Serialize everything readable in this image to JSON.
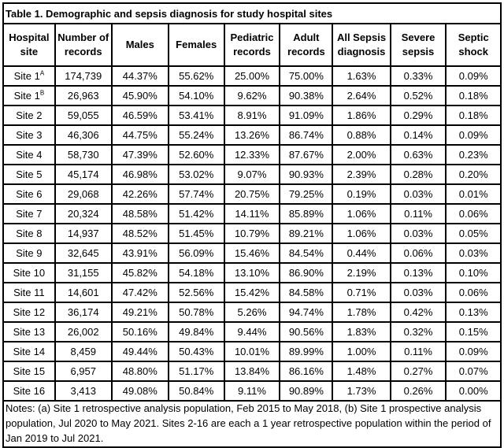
{
  "table": {
    "title": "Table 1. Demographic and sepsis diagnosis for study hospital sites",
    "columns": [
      "Hospital site",
      "Number of records",
      "Males",
      "Females",
      "Pediatric records",
      "Adult records",
      "All Sepsis diagnosis",
      "Severe sepsis",
      "Septic shock"
    ],
    "rows": [
      {
        "site": "Site 1",
        "sup": "A",
        "values": [
          "174,739",
          "44.37%",
          "55.62%",
          "25.00%",
          "75.00%",
          "1.63%",
          "0.33%",
          "0.09%"
        ]
      },
      {
        "site": "Site 1",
        "sup": "B",
        "values": [
          "26,963",
          "45.90%",
          "54.10%",
          "9.62%",
          "90.38%",
          "2.64%",
          "0.52%",
          "0.18%"
        ]
      },
      {
        "site": "Site 2",
        "sup": "",
        "values": [
          "59,055",
          "46.59%",
          "53.41%",
          "8.91%",
          "91.09%",
          "1.86%",
          "0.29%",
          "0.18%"
        ]
      },
      {
        "site": "Site 3",
        "sup": "",
        "values": [
          "46,306",
          "44.75%",
          "55.24%",
          "13.26%",
          "86.74%",
          "0.88%",
          "0.14%",
          "0.09%"
        ]
      },
      {
        "site": "Site 4",
        "sup": "",
        "values": [
          "58,730",
          "47.39%",
          "52.60%",
          "12.33%",
          "87.67%",
          "2.00%",
          "0.63%",
          "0.23%"
        ]
      },
      {
        "site": "Site 5",
        "sup": "",
        "values": [
          "45,174",
          "46.98%",
          "53.02%",
          "9.07%",
          "90.93%",
          "2.39%",
          "0.28%",
          "0.20%"
        ]
      },
      {
        "site": "Site 6",
        "sup": "",
        "values": [
          "29,068",
          "42.26%",
          "57.74%",
          "20.75%",
          "79.25%",
          "0.19%",
          "0.03%",
          "0.01%"
        ]
      },
      {
        "site": "Site 7",
        "sup": "",
        "values": [
          "20,324",
          "48.58%",
          "51.42%",
          "14.11%",
          "85.89%",
          "1.06%",
          "0.11%",
          "0.06%"
        ]
      },
      {
        "site": "Site 8",
        "sup": "",
        "values": [
          "14,937",
          "48.52%",
          "51.45%",
          "10.79%",
          "89.21%",
          "1.06%",
          "0.03%",
          "0.05%"
        ]
      },
      {
        "site": "Site 9",
        "sup": "",
        "values": [
          "32,645",
          "43.91%",
          "56.09%",
          "15.46%",
          "84.54%",
          "0.44%",
          "0.06%",
          "0.03%"
        ]
      },
      {
        "site": "Site 10",
        "sup": "",
        "values": [
          "31,155",
          "45.82%",
          "54.18%",
          "13.10%",
          "86.90%",
          "2.19%",
          "0.13%",
          "0.10%"
        ]
      },
      {
        "site": "Site 11",
        "sup": "",
        "values": [
          "14,601",
          "47.42%",
          "52.56%",
          "15.42%",
          "84.58%",
          "0.71%",
          "0.03%",
          "0.06%"
        ]
      },
      {
        "site": "Site 12",
        "sup": "",
        "values": [
          "36,174",
          "49.21%",
          "50.78%",
          "5.26%",
          "94.74%",
          "1.78%",
          "0.42%",
          "0.13%"
        ]
      },
      {
        "site": "Site 13",
        "sup": "",
        "values": [
          "26,002",
          "50.16%",
          "49.84%",
          "9.44%",
          "90.56%",
          "1.83%",
          "0.32%",
          "0.15%"
        ]
      },
      {
        "site": "Site 14",
        "sup": "",
        "values": [
          "8,459",
          "49.44%",
          "50.43%",
          "10.01%",
          "89.99%",
          "1.00%",
          "0.11%",
          "0.09%"
        ]
      },
      {
        "site": "Site 15",
        "sup": "",
        "values": [
          "6,957",
          "48.80%",
          "51.17%",
          "13.84%",
          "86.16%",
          "1.48%",
          "0.27%",
          "0.07%"
        ]
      },
      {
        "site": "Site 16",
        "sup": "",
        "values": [
          "3,413",
          "49.08%",
          "50.84%",
          "9.11%",
          "90.89%",
          "1.73%",
          "0.26%",
          "0.00%"
        ]
      }
    ],
    "notes": "Notes: (a) Site 1 retrospective analysis population, Feb 2015 to May 2018, (b) Site 1 prospective analysis population, Jul 2020 to May 2021. Sites 2-16 are each a 1 year retrospective population within the period of Jan 2019 to Jul 2021.",
    "colors": {
      "border": "#000000",
      "text": "#000000",
      "background": "#ffffff"
    }
  }
}
